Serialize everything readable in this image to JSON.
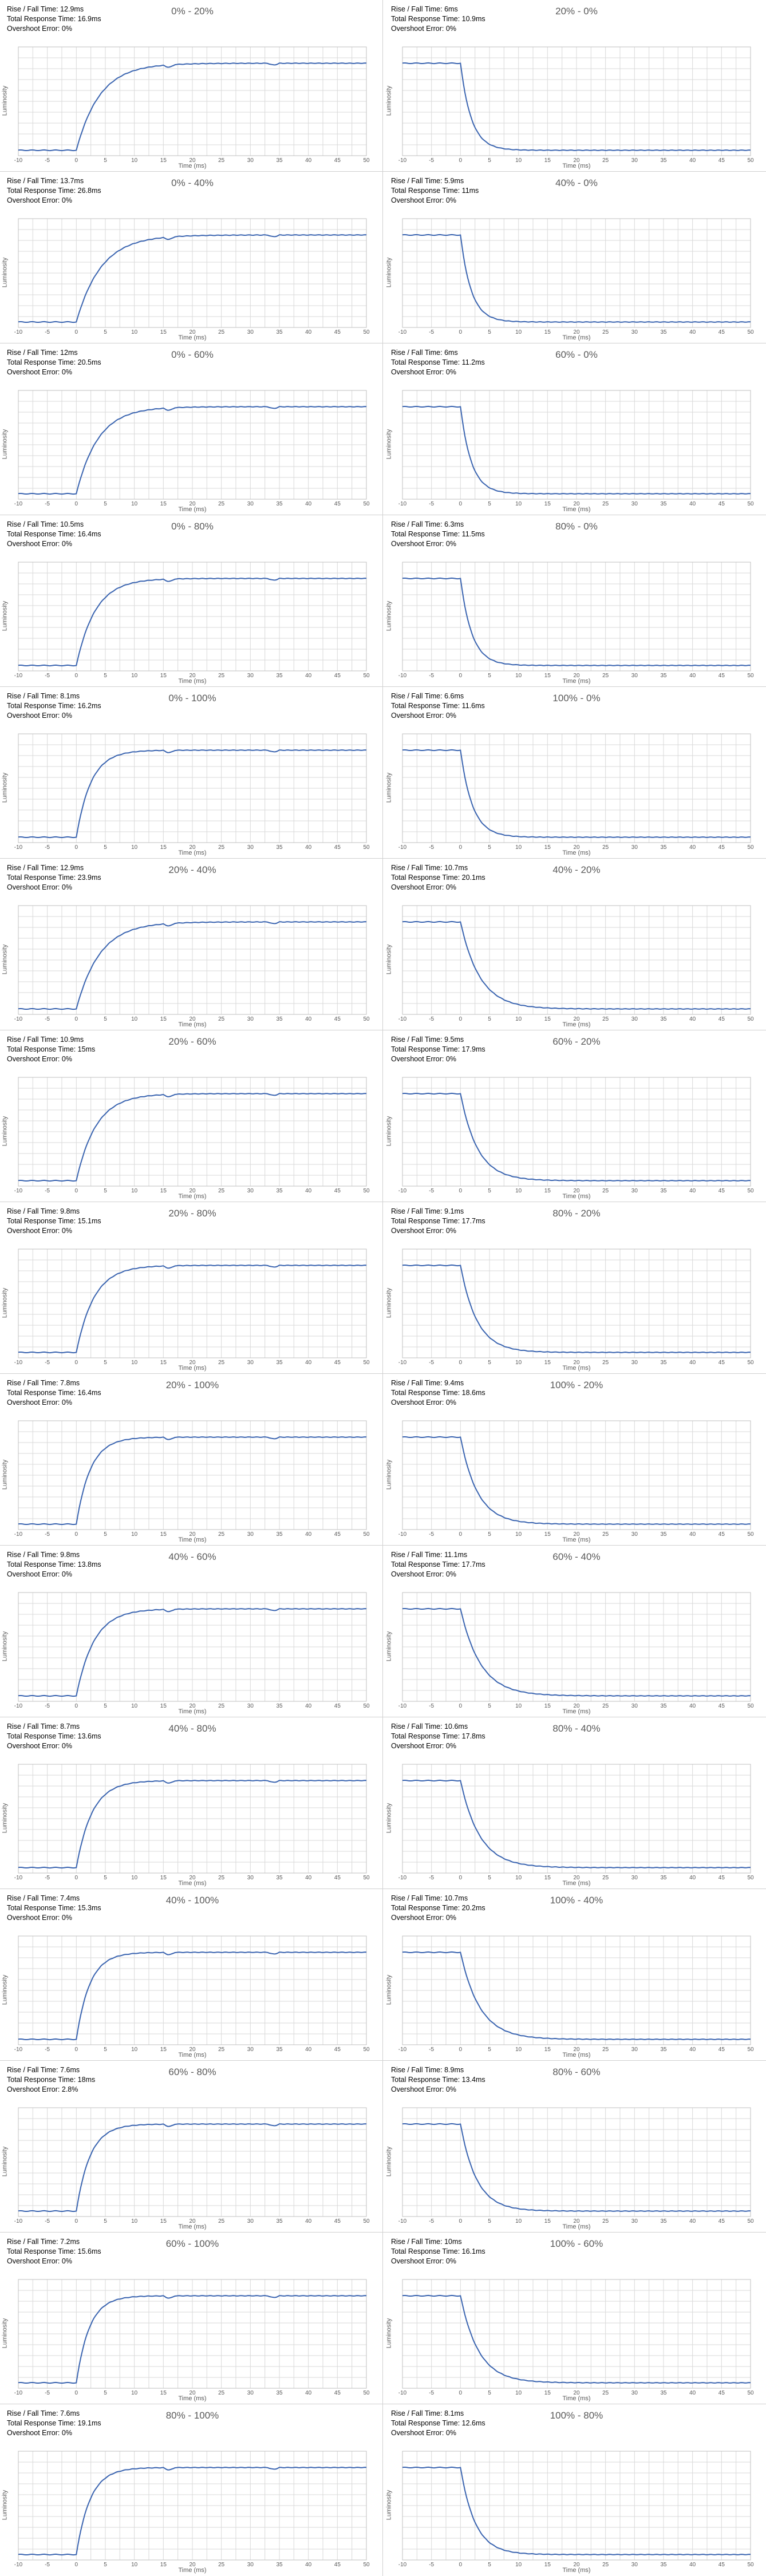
{
  "labels": {
    "rise_prefix": "Rise / Fall Time: ",
    "total_prefix": "Total Response Time: ",
    "overshoot_prefix": "Overshoot Error: "
  },
  "style": {
    "line_color": "#3a64b0",
    "grid_color": "#d9d9d9",
    "axis_text_color": "#595959"
  },
  "chart_data": [
    {
      "type": "line",
      "title": "0% - 20%",
      "rise_fall": "12.9ms",
      "total": "16.9ms",
      "overshoot": "0%",
      "direction": "rise",
      "from": 0,
      "to": 20,
      "xlabel": "Time (ms)",
      "ylabel": "Luminosity",
      "xticks": [
        -10,
        -5,
        0,
        5,
        10,
        15,
        20,
        25,
        30,
        35,
        40,
        45,
        50
      ],
      "xlim": [
        -10,
        50
      ],
      "grid": true
    },
    {
      "type": "line",
      "title": "20% - 0%",
      "rise_fall": "6ms",
      "total": "10.9ms",
      "overshoot": "0%",
      "direction": "fall",
      "from": 20,
      "to": 0,
      "xlabel": "Time (ms)",
      "ylabel": "Luminosity",
      "xticks": [
        -10,
        -5,
        0,
        5,
        10,
        15,
        20,
        25,
        30,
        35,
        40,
        45,
        50
      ],
      "xlim": [
        -10,
        50
      ],
      "grid": true
    },
    {
      "type": "line",
      "title": "0% - 40%",
      "rise_fall": "13.7ms",
      "total": "26.8ms",
      "overshoot": "0%",
      "direction": "rise",
      "from": 0,
      "to": 40,
      "xlabel": "Time (ms)",
      "ylabel": "Luminosity",
      "xticks": [
        -10,
        -5,
        0,
        5,
        10,
        15,
        20,
        25,
        30,
        35,
        40,
        45,
        50
      ],
      "xlim": [
        -10,
        50
      ],
      "grid": true
    },
    {
      "type": "line",
      "title": "40% - 0%",
      "rise_fall": "5.9ms",
      "total": "11ms",
      "overshoot": "0%",
      "direction": "fall",
      "from": 40,
      "to": 0,
      "xlabel": "Time (ms)",
      "ylabel": "Luminosity",
      "xticks": [
        -10,
        -5,
        0,
        5,
        10,
        15,
        20,
        25,
        30,
        35,
        40,
        45,
        50
      ],
      "xlim": [
        -10,
        50
      ],
      "grid": true
    },
    {
      "type": "line",
      "title": "0% - 60%",
      "rise_fall": "12ms",
      "total": "20.5ms",
      "overshoot": "0%",
      "direction": "rise",
      "from": 0,
      "to": 60,
      "xlabel": "Time (ms)",
      "ylabel": "Luminosity",
      "xticks": [
        -10,
        -5,
        0,
        5,
        10,
        15,
        20,
        25,
        30,
        35,
        40,
        45,
        50
      ],
      "xlim": [
        -10,
        50
      ],
      "grid": true
    },
    {
      "type": "line",
      "title": "60% - 0%",
      "rise_fall": "6ms",
      "total": "11.2ms",
      "overshoot": "0%",
      "direction": "fall",
      "from": 60,
      "to": 0,
      "xlabel": "Time (ms)",
      "ylabel": "Luminosity",
      "xticks": [
        -10,
        -5,
        0,
        5,
        10,
        15,
        20,
        25,
        30,
        35,
        40,
        45,
        50
      ],
      "xlim": [
        -10,
        50
      ],
      "grid": true
    },
    {
      "type": "line",
      "title": "0% - 80%",
      "rise_fall": "10.5ms",
      "total": "16.4ms",
      "overshoot": "0%",
      "direction": "rise",
      "from": 0,
      "to": 80,
      "xlabel": "Time (ms)",
      "ylabel": "Luminosity",
      "xticks": [
        -10,
        -5,
        0,
        5,
        10,
        15,
        20,
        25,
        30,
        35,
        40,
        45,
        50
      ],
      "xlim": [
        -10,
        50
      ],
      "grid": true
    },
    {
      "type": "line",
      "title": "80% - 0%",
      "rise_fall": "6.3ms",
      "total": "11.5ms",
      "overshoot": "0%",
      "direction": "fall",
      "from": 80,
      "to": 0,
      "xlabel": "Time (ms)",
      "ylabel": "Luminosity",
      "xticks": [
        -10,
        -5,
        0,
        5,
        10,
        15,
        20,
        25,
        30,
        35,
        40,
        45,
        50
      ],
      "xlim": [
        -10,
        50
      ],
      "grid": true
    },
    {
      "type": "line",
      "title": "0% - 100%",
      "rise_fall": "8.1ms",
      "total": "16.2ms",
      "overshoot": "0%",
      "direction": "rise",
      "from": 0,
      "to": 100,
      "xlabel": "Time (ms)",
      "ylabel": "Luminosity",
      "xticks": [
        -10,
        -5,
        0,
        5,
        10,
        15,
        20,
        25,
        30,
        35,
        40,
        45,
        50
      ],
      "xlim": [
        -10,
        50
      ],
      "grid": true
    },
    {
      "type": "line",
      "title": "100% - 0%",
      "rise_fall": "6.6ms",
      "total": "11.6ms",
      "overshoot": "0%",
      "direction": "fall",
      "from": 100,
      "to": 0,
      "xlabel": "Time (ms)",
      "ylabel": "Luminosity",
      "xticks": [
        -10,
        -5,
        0,
        5,
        10,
        15,
        20,
        25,
        30,
        35,
        40,
        45,
        50
      ],
      "xlim": [
        -10,
        50
      ],
      "grid": true
    },
    {
      "type": "line",
      "title": "20% - 40%",
      "rise_fall": "12.9ms",
      "total": "23.9ms",
      "overshoot": "0%",
      "direction": "rise",
      "from": 20,
      "to": 40,
      "xlabel": "Time (ms)",
      "ylabel": "Luminosity",
      "xticks": [
        -10,
        -5,
        0,
        5,
        10,
        15,
        20,
        25,
        30,
        35,
        40,
        45,
        50
      ],
      "xlim": [
        -10,
        50
      ],
      "grid": true
    },
    {
      "type": "line",
      "title": "40% - 20%",
      "rise_fall": "10.7ms",
      "total": "20.1ms",
      "overshoot": "0%",
      "direction": "fall",
      "from": 40,
      "to": 20,
      "xlabel": "Time (ms)",
      "ylabel": "Luminosity",
      "xticks": [
        -10,
        -5,
        0,
        5,
        10,
        15,
        20,
        25,
        30,
        35,
        40,
        45,
        50
      ],
      "xlim": [
        -10,
        50
      ],
      "grid": true
    },
    {
      "type": "line",
      "title": "20% - 60%",
      "rise_fall": "10.9ms",
      "total": "15ms",
      "overshoot": "0%",
      "direction": "rise",
      "from": 20,
      "to": 60,
      "xlabel": "Time (ms)",
      "ylabel": "Luminosity",
      "xticks": [
        -10,
        -5,
        0,
        5,
        10,
        15,
        20,
        25,
        30,
        35,
        40,
        45,
        50
      ],
      "xlim": [
        -10,
        50
      ],
      "grid": true
    },
    {
      "type": "line",
      "title": "60% - 20%",
      "rise_fall": "9.5ms",
      "total": "17.9ms",
      "overshoot": "0%",
      "direction": "fall",
      "from": 60,
      "to": 20,
      "xlabel": "Time (ms)",
      "ylabel": "Luminosity",
      "xticks": [
        -10,
        -5,
        0,
        5,
        10,
        15,
        20,
        25,
        30,
        35,
        40,
        45,
        50
      ],
      "xlim": [
        -10,
        50
      ],
      "grid": true
    },
    {
      "type": "line",
      "title": "20% - 80%",
      "rise_fall": "9.8ms",
      "total": "15.1ms",
      "overshoot": "0%",
      "direction": "rise",
      "from": 20,
      "to": 80,
      "xlabel": "Time (ms)",
      "ylabel": "Luminosity",
      "xticks": [
        -10,
        -5,
        0,
        5,
        10,
        15,
        20,
        25,
        30,
        35,
        40,
        45,
        50
      ],
      "xlim": [
        -10,
        50
      ],
      "grid": true
    },
    {
      "type": "line",
      "title": "80% - 20%",
      "rise_fall": "9.1ms",
      "total": "17.7ms",
      "overshoot": "0%",
      "direction": "fall",
      "from": 80,
      "to": 20,
      "xlabel": "Time (ms)",
      "ylabel": "Luminosity",
      "xticks": [
        -10,
        -5,
        0,
        5,
        10,
        15,
        20,
        25,
        30,
        35,
        40,
        45,
        50
      ],
      "xlim": [
        -10,
        50
      ],
      "grid": true
    },
    {
      "type": "line",
      "title": "20% - 100%",
      "rise_fall": "7.8ms",
      "total": "16.4ms",
      "overshoot": "0%",
      "direction": "rise",
      "from": 20,
      "to": 100,
      "xlabel": "Time (ms)",
      "ylabel": "Luminosity",
      "xticks": [
        -10,
        -5,
        0,
        5,
        10,
        15,
        20,
        25,
        30,
        35,
        40,
        45,
        50
      ],
      "xlim": [
        -10,
        50
      ],
      "grid": true
    },
    {
      "type": "line",
      "title": "100% - 20%",
      "rise_fall": "9.4ms",
      "total": "18.6ms",
      "overshoot": "0%",
      "direction": "fall",
      "from": 100,
      "to": 20,
      "xlabel": "Time (ms)",
      "ylabel": "Luminosity",
      "xticks": [
        -10,
        -5,
        0,
        5,
        10,
        15,
        20,
        25,
        30,
        35,
        40,
        45,
        50
      ],
      "xlim": [
        -10,
        50
      ],
      "grid": true
    },
    {
      "type": "line",
      "title": "40% - 60%",
      "rise_fall": "9.8ms",
      "total": "13.8ms",
      "overshoot": "0%",
      "direction": "rise",
      "from": 40,
      "to": 60,
      "xlabel": "Time (ms)",
      "ylabel": "Luminosity",
      "xticks": [
        -10,
        -5,
        0,
        5,
        10,
        15,
        20,
        25,
        30,
        35,
        40,
        45,
        50
      ],
      "xlim": [
        -10,
        50
      ],
      "grid": true
    },
    {
      "type": "line",
      "title": "60% - 40%",
      "rise_fall": "11.1ms",
      "total": "17.7ms",
      "overshoot": "0%",
      "direction": "fall",
      "from": 60,
      "to": 40,
      "xlabel": "Time (ms)",
      "ylabel": "Luminosity",
      "xticks": [
        -10,
        -5,
        0,
        5,
        10,
        15,
        20,
        25,
        30,
        35,
        40,
        45,
        50
      ],
      "xlim": [
        -10,
        50
      ],
      "grid": true
    },
    {
      "type": "line",
      "title": "40% - 80%",
      "rise_fall": "8.7ms",
      "total": "13.6ms",
      "overshoot": "0%",
      "direction": "rise",
      "from": 40,
      "to": 80,
      "xlabel": "Time (ms)",
      "ylabel": "Luminosity",
      "xticks": [
        -10,
        -5,
        0,
        5,
        10,
        15,
        20,
        25,
        30,
        35,
        40,
        45,
        50
      ],
      "xlim": [
        -10,
        50
      ],
      "grid": true
    },
    {
      "type": "line",
      "title": "80% - 40%",
      "rise_fall": "10.6ms",
      "total": "17.8ms",
      "overshoot": "0%",
      "direction": "fall",
      "from": 80,
      "to": 40,
      "xlabel": "Time (ms)",
      "ylabel": "Luminosity",
      "xticks": [
        -10,
        -5,
        0,
        5,
        10,
        15,
        20,
        25,
        30,
        35,
        40,
        45,
        50
      ],
      "xlim": [
        -10,
        50
      ],
      "grid": true
    },
    {
      "type": "line",
      "title": "40% - 100%",
      "rise_fall": "7.4ms",
      "total": "15.3ms",
      "overshoot": "0%",
      "direction": "rise",
      "from": 40,
      "to": 100,
      "xlabel": "Time (ms)",
      "ylabel": "Luminosity",
      "xticks": [
        -10,
        -5,
        0,
        5,
        10,
        15,
        20,
        25,
        30,
        35,
        40,
        45,
        50
      ],
      "xlim": [
        -10,
        50
      ],
      "grid": true
    },
    {
      "type": "line",
      "title": "100% - 40%",
      "rise_fall": "10.7ms",
      "total": "20.2ms",
      "overshoot": "0%",
      "direction": "fall",
      "from": 100,
      "to": 40,
      "xlabel": "Time (ms)",
      "ylabel": "Luminosity",
      "xticks": [
        -10,
        -5,
        0,
        5,
        10,
        15,
        20,
        25,
        30,
        35,
        40,
        45,
        50
      ],
      "xlim": [
        -10,
        50
      ],
      "grid": true
    },
    {
      "type": "line",
      "title": "60% - 80%",
      "rise_fall": "7.6ms",
      "total": "18ms",
      "overshoot": "2.8%",
      "direction": "rise",
      "from": 60,
      "to": 80,
      "xlabel": "Time (ms)",
      "ylabel": "Luminosity",
      "xticks": [
        -10,
        -5,
        0,
        5,
        10,
        15,
        20,
        25,
        30,
        35,
        40,
        45,
        50
      ],
      "xlim": [
        -10,
        50
      ],
      "grid": true
    },
    {
      "type": "line",
      "title": "80% - 60%",
      "rise_fall": "8.9ms",
      "total": "13.4ms",
      "overshoot": "0%",
      "direction": "fall",
      "from": 80,
      "to": 60,
      "xlabel": "Time (ms)",
      "ylabel": "Luminosity",
      "xticks": [
        -10,
        -5,
        0,
        5,
        10,
        15,
        20,
        25,
        30,
        35,
        40,
        45,
        50
      ],
      "xlim": [
        -10,
        50
      ],
      "grid": true
    },
    {
      "type": "line",
      "title": "60% - 100%",
      "rise_fall": "7.2ms",
      "total": "15.6ms",
      "overshoot": "0%",
      "direction": "rise",
      "from": 60,
      "to": 100,
      "xlabel": "Time (ms)",
      "ylabel": "Luminosity",
      "xticks": [
        -10,
        -5,
        0,
        5,
        10,
        15,
        20,
        25,
        30,
        35,
        40,
        45,
        50
      ],
      "xlim": [
        -10,
        50
      ],
      "grid": true
    },
    {
      "type": "line",
      "title": "100% - 60%",
      "rise_fall": "10ms",
      "total": "16.1ms",
      "overshoot": "0%",
      "direction": "fall",
      "from": 100,
      "to": 60,
      "xlabel": "Time (ms)",
      "ylabel": "Luminosity",
      "xticks": [
        -10,
        -5,
        0,
        5,
        10,
        15,
        20,
        25,
        30,
        35,
        40,
        45,
        50
      ],
      "xlim": [
        -10,
        50
      ],
      "grid": true
    },
    {
      "type": "line",
      "title": "80% - 100%",
      "rise_fall": "7.6ms",
      "total": "19.1ms",
      "overshoot": "0%",
      "direction": "rise",
      "from": 80,
      "to": 100,
      "xlabel": "Time (ms)",
      "ylabel": "Luminosity",
      "xticks": [
        -10,
        -5,
        0,
        5,
        10,
        15,
        20,
        25,
        30,
        35,
        40,
        45,
        50
      ],
      "xlim": [
        -10,
        50
      ],
      "grid": true
    },
    {
      "type": "line",
      "title": "100% - 80%",
      "rise_fall": "8.1ms",
      "total": "12.6ms",
      "overshoot": "0%",
      "direction": "fall",
      "from": 100,
      "to": 80,
      "xlabel": "Time (ms)",
      "ylabel": "Luminosity",
      "xticks": [
        -10,
        -5,
        0,
        5,
        10,
        15,
        20,
        25,
        30,
        35,
        40,
        45,
        50
      ],
      "xlim": [
        -10,
        50
      ],
      "grid": true
    }
  ]
}
